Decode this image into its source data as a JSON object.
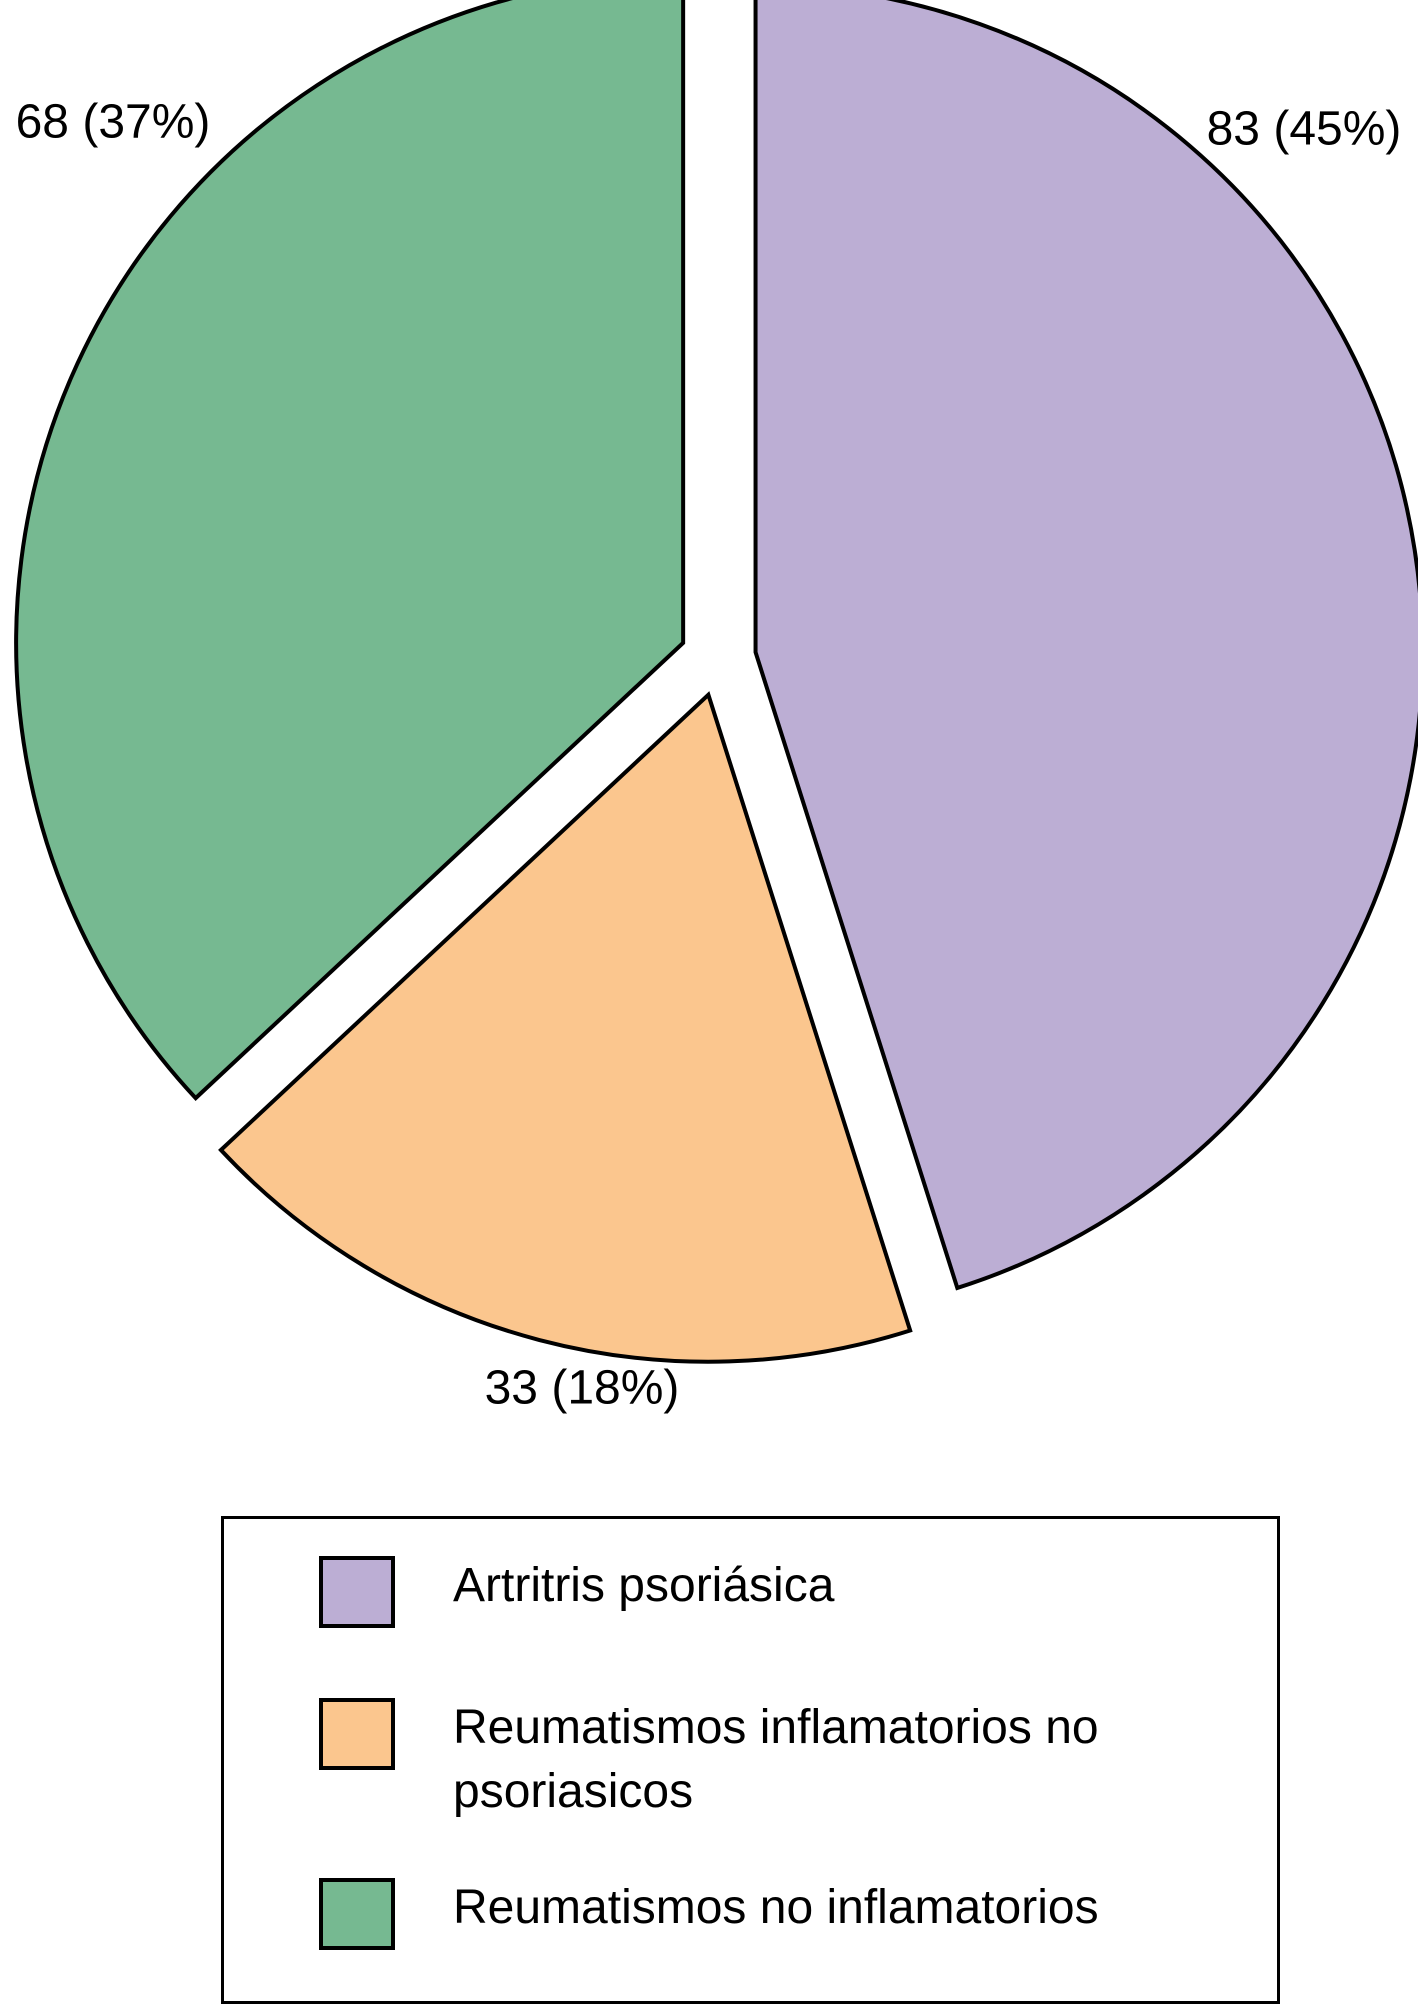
{
  "chart_data": {
    "type": "pie",
    "categories": [
      "Artritris psoriásica",
      "Reumatismos inflamatorios no psoriasicos",
      "Reumatismos no inflamatorios"
    ],
    "values": [
      83,
      33,
      68
    ],
    "value_labels": [
      "83 (45%)",
      "33 (18%)",
      "68 (37%)"
    ],
    "colors": [
      "#bcaed4",
      "#fbc68e",
      "#76b991"
    ]
  }
}
